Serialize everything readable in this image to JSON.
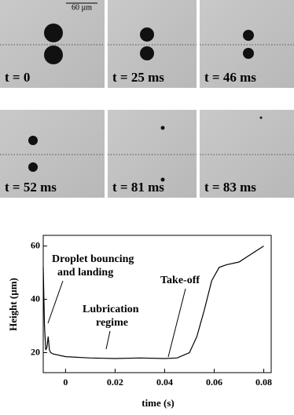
{
  "scale_bar": "60 µm",
  "panels": [
    {
      "label": "t = 0"
    },
    {
      "label": "t = 25 ms"
    },
    {
      "label": "t = 46 ms"
    },
    {
      "label": "t = 52 ms"
    },
    {
      "label": "t = 81 ms"
    },
    {
      "label": "t = 83 ms"
    }
  ],
  "chart_data": {
    "type": "line",
    "xlabel": "time (s)",
    "ylabel": "Height (µm)",
    "x": [
      -0.009,
      -0.0085,
      -0.008,
      -0.0075,
      -0.007,
      -0.0065,
      -0.006,
      -0.005,
      0,
      0.01,
      0.02,
      0.03,
      0.04,
      0.045,
      0.05,
      0.053,
      0.056,
      0.059,
      0.062,
      0.065,
      0.07,
      0.075,
      0.08
    ],
    "series": [
      {
        "color": "#000000",
        "values": [
          52,
          30,
          21,
          22,
          26,
          21,
          20,
          19.5,
          18.5,
          18,
          17.8,
          18,
          17.8,
          18,
          20,
          26,
          36,
          47,
          52,
          53,
          54,
          57,
          60
        ]
      }
    ],
    "xlim": [
      -0.009,
      0.083
    ],
    "ylim": [
      12.5,
      64
    ],
    "xticks": [
      0,
      0.02,
      0.04,
      0.06,
      0.08
    ],
    "yticks": [
      20,
      40,
      60
    ],
    "annotations": [
      "Droplet bouncing",
      "and landing",
      "Lubrication",
      "regime",
      "Take-off"
    ]
  }
}
